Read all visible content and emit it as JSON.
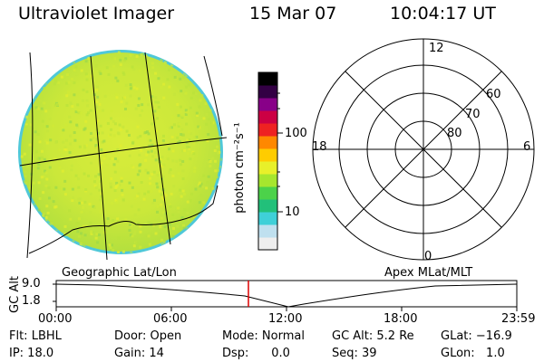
{
  "header": {
    "title": "Ultraviolet Imager",
    "date": "15 Mar 07",
    "time": "10:04:17 UT"
  },
  "colorbar": {
    "unit_label": "photon cm⁻²s⁻¹",
    "ticks": [
      "100",
      "10"
    ],
    "colors": [
      "#eeeeee",
      "#bfe0ef",
      "#3fd0d8",
      "#22c07a",
      "#4cd24a",
      "#a6e62e",
      "#e8f02a",
      "#ffcc00",
      "#ff8800",
      "#ee2222",
      "#cc0044",
      "#880088",
      "#330044",
      "#000000"
    ]
  },
  "polar_plot": {
    "mlt_labels": {
      "top": "12",
      "left": "18",
      "right": "6",
      "bottom": "0"
    },
    "lat_labels": [
      "60",
      "70",
      "80"
    ]
  },
  "timeline": {
    "ylabel": "GC Alt",
    "ytick_top": "9.0",
    "ytick_bottom": "1.8",
    "left_title": "Geographic Lat/Lon",
    "right_title": "Apex MLat/MLT",
    "xticks": [
      "00:00",
      "06:00",
      "12:00",
      "18:00",
      "23:59"
    ],
    "cursor_color": "#dd0000"
  },
  "info": {
    "flt": "Flt: LBHL",
    "ip": "IP: 18.0",
    "door": "Door: Open",
    "gain": "Gain: 14",
    "mode": "Mode: Normal",
    "dsp": "Dsp:      0.0",
    "gcalt": "GC Alt: 5.2 Re",
    "seq": "Seq: 39",
    "glat": "GLat: −16.9",
    "glon": "GLon:   1.0"
  }
}
